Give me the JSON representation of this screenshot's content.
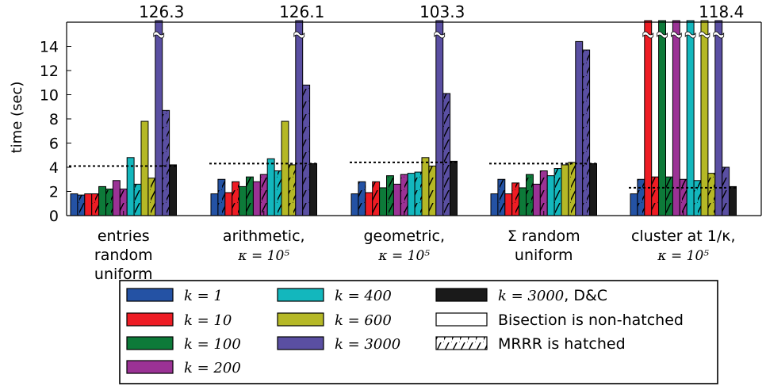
{
  "chart_data": {
    "type": "bar",
    "ylabel": "time (sec)",
    "ylim": [
      0,
      16
    ],
    "yticks": [
      0,
      2,
      4,
      6,
      8,
      10,
      12,
      14
    ],
    "grid": false,
    "legend_position": "bottom",
    "categories": [
      {
        "lines": [
          {
            "text": "entries"
          },
          {
            "text": "random"
          },
          {
            "text": "uniform"
          }
        ]
      },
      {
        "lines": [
          {
            "text": "arithmetic,"
          },
          {
            "text": "κ = 10⁵",
            "math": true
          }
        ]
      },
      {
        "lines": [
          {
            "text": "geometric,"
          },
          {
            "text": "κ = 10⁵",
            "math": true
          }
        ]
      },
      {
        "lines": [
          {
            "text": "Σ random"
          },
          {
            "text": "uniform"
          }
        ]
      },
      {
        "lines": [
          {
            "text": "cluster at 1/κ,"
          },
          {
            "text": "κ = 10⁵",
            "math": true
          }
        ]
      }
    ],
    "overflow_labels": [
      {
        "category": 0,
        "text": "126.3"
      },
      {
        "category": 1,
        "text": "126.1"
      },
      {
        "category": 2,
        "text": "103.3"
      },
      {
        "category": 4,
        "text": "118.4"
      }
    ],
    "dc_reference": [
      4.1,
      4.3,
      4.4,
      4.3,
      2.3
    ],
    "series": [
      {
        "name": "k = 1",
        "color": "#2452a4",
        "bisection": [
          1.8,
          1.8,
          1.8,
          1.8,
          1.8
        ],
        "mrrr": [
          1.7,
          3.0,
          2.8,
          3.0,
          3.0
        ]
      },
      {
        "name": "k = 10",
        "color": "#ee1c24",
        "bisection": [
          1.8,
          1.9,
          1.9,
          1.8,
          126.0
        ],
        "mrrr": [
          1.8,
          2.8,
          2.8,
          2.7,
          3.2
        ]
      },
      {
        "name": "k = 100",
        "color": "#0d7a39",
        "bisection": [
          2.4,
          2.4,
          2.3,
          2.3,
          126.0
        ],
        "mrrr": [
          2.2,
          3.2,
          3.3,
          3.4,
          3.2
        ]
      },
      {
        "name": "k = 200",
        "color": "#9b3295",
        "bisection": [
          2.9,
          2.8,
          2.6,
          2.6,
          126.0
        ],
        "mrrr": [
          2.2,
          3.4,
          3.4,
          3.7,
          3.0
        ]
      },
      {
        "name": "k = 400",
        "color": "#13b7bd",
        "bisection": [
          4.8,
          4.7,
          3.5,
          3.3,
          126.0
        ],
        "mrrr": [
          2.6,
          3.7,
          3.6,
          3.9,
          2.9
        ]
      },
      {
        "name": "k = 600",
        "color": "#b5b826",
        "bisection": [
          7.8,
          7.8,
          4.8,
          4.2,
          126.0
        ],
        "mrrr": [
          3.1,
          4.2,
          4.1,
          4.4,
          3.5
        ]
      },
      {
        "name": "k = 3000",
        "color": "#5a4fa2",
        "bisection": [
          126.3,
          126.1,
          103.3,
          14.4,
          118.4
        ],
        "mrrr": [
          8.7,
          10.8,
          10.1,
          13.7,
          4.0
        ]
      },
      {
        "name": "k = 3000, D&C",
        "color": "#1a1a1a",
        "dc": [
          4.2,
          4.3,
          4.5,
          4.3,
          2.4
        ]
      }
    ],
    "legend": [
      {
        "label": "k = 1",
        "math": true,
        "color": "#2452a4",
        "style": "solid"
      },
      {
        "label": "k = 10",
        "math": true,
        "color": "#ee1c24",
        "style": "solid"
      },
      {
        "label": "k = 100",
        "math": true,
        "color": "#0d7a39",
        "style": "solid"
      },
      {
        "label": "k = 200",
        "math": true,
        "color": "#9b3295",
        "style": "solid"
      },
      {
        "label": "k = 400",
        "math": true,
        "color": "#13b7bd",
        "style": "solid"
      },
      {
        "label": "k = 600",
        "math": true,
        "color": "#b5b826",
        "style": "solid"
      },
      {
        "label": "k = 3000",
        "math": true,
        "color": "#5a4fa2",
        "style": "solid"
      },
      {
        "label": "k = 3000",
        "math": true,
        "suffix": ", D&C",
        "color": "#1a1a1a",
        "style": "solid"
      },
      {
        "label": "Bisection is non-hatched",
        "math": false,
        "color": "#ffffff",
        "style": "plain"
      },
      {
        "label": "MRRR is hatched",
        "math": false,
        "color": "#ffffff",
        "style": "hatched"
      }
    ]
  }
}
